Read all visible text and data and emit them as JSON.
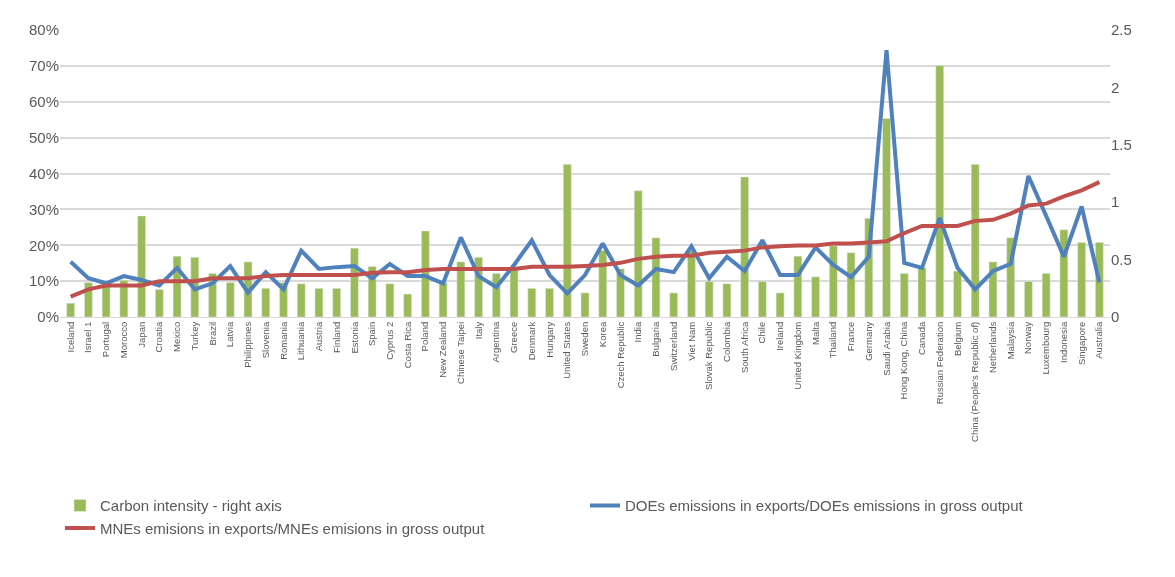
{
  "chart_data": {
    "type": "bar",
    "categories": [
      "Iceland",
      "Israel 1",
      "Portugal",
      "Morocco",
      "Japan",
      "Croatia",
      "Mexico",
      "Turkey",
      "Brazil",
      "Latvia",
      "Philippines",
      "Slovenia",
      "Romania",
      "Lithuania",
      "Austria",
      "Finland",
      "Estonia",
      "Spain",
      "Cyprus 2",
      "Costa Rica",
      "Poland",
      "New Zealand",
      "Chinese Taipei",
      "Italy",
      "Argentina",
      "Greece",
      "Denmark",
      "Hungary",
      "United States",
      "Sweden",
      "Korea",
      "Czech Republic",
      "India",
      "Bulgaria",
      "Switzerland",
      "Viet Nam",
      "Slovak Republic",
      "Colombia",
      "South Africa",
      "Chile",
      "Ireland",
      "United Kingdom",
      "Malta",
      "Thailand",
      "France",
      "Germany",
      "Saudi Arabia",
      "Hong Kong, China",
      "Canada",
      "Russian Federation",
      "Belgium",
      "China (People's Republic of)",
      "Netherlands",
      "Malaysia",
      "Norway",
      "Luxembourg",
      "Indonesia",
      "Singapore",
      "Australia"
    ],
    "series": [
      {
        "name": "Carbon intensity - right axis",
        "axis": "y2",
        "color": "#9bbb59",
        "values": [
          0.12,
          0.3,
          0.29,
          0.32,
          0.88,
          0.24,
          0.53,
          0.52,
          0.38,
          0.3,
          0.48,
          0.25,
          0.3,
          0.29,
          0.25,
          0.25,
          0.6,
          0.44,
          0.29,
          0.2,
          0.75,
          0.3,
          0.48,
          0.52,
          0.38,
          0.43,
          0.25,
          0.25,
          1.33,
          0.21,
          0.58,
          0.42,
          1.1,
          0.69,
          0.21,
          0.58,
          0.31,
          0.29,
          1.22,
          0.31,
          0.21,
          0.53,
          0.35,
          0.62,
          0.56,
          0.86,
          1.73,
          0.38,
          0.43,
          2.19,
          0.4,
          1.33,
          0.48,
          0.69,
          0.31,
          0.38,
          0.76,
          0.65,
          0.65
        ]
      },
      {
        "name": "DOEs emissions in exports/DOEs emissions in gross output",
        "type": "line",
        "color": "#4f81bd",
        "values": [
          15.4,
          10.8,
          9.4,
          11.4,
          10.3,
          8.8,
          13.7,
          7.7,
          9.4,
          14.2,
          6.8,
          12.5,
          7.7,
          18.5,
          13.4,
          13.9,
          14.2,
          10.8,
          14.8,
          11.4,
          11.4,
          9.4,
          22.2,
          11.4,
          8.3,
          14.5,
          21.4,
          11.7,
          6.6,
          11.7,
          20.5,
          11.7,
          8.8,
          13.4,
          12.5,
          19.7,
          10.8,
          16.8,
          12.8,
          21.4,
          11.7,
          11.7,
          19.4,
          14.5,
          11.1,
          16.8,
          74.4,
          15.1,
          13.7,
          27.6,
          13.7,
          7.7,
          12.8,
          14.8,
          39.3,
          28.2,
          16.8,
          30.8,
          9.7
        ]
      },
      {
        "name": "MNEs emisions in exports/MNEs emisions in gross output",
        "type": "line",
        "color": "#c0504d",
        "values": [
          5.7,
          7.7,
          8.8,
          8.8,
          8.8,
          10.0,
          10.0,
          10.0,
          10.8,
          10.8,
          10.8,
          11.4,
          11.7,
          11.7,
          11.7,
          11.7,
          11.7,
          12.3,
          12.5,
          12.5,
          13.1,
          13.4,
          13.4,
          13.4,
          13.4,
          13.4,
          14.0,
          14.0,
          14.0,
          14.2,
          14.5,
          15.1,
          16.2,
          16.8,
          17.1,
          17.1,
          17.9,
          18.2,
          18.5,
          19.4,
          19.7,
          19.9,
          19.9,
          20.5,
          20.5,
          20.8,
          21.1,
          23.4,
          25.4,
          25.4,
          25.4,
          26.8,
          27.1,
          28.8,
          31.1,
          31.6,
          33.6,
          35.3,
          37.6
        ]
      }
    ],
    "ylim": [
      0,
      80
    ],
    "yticks": [
      {
        "value": 0,
        "label": "0%"
      },
      {
        "value": 10,
        "label": "10%"
      },
      {
        "value": 20,
        "label": "20%"
      },
      {
        "value": 30,
        "label": "30%"
      },
      {
        "value": 40,
        "label": "40%"
      },
      {
        "value": 50,
        "label": "50%"
      },
      {
        "value": 60,
        "label": "60%"
      },
      {
        "value": 70,
        "label": "70%"
      },
      {
        "value": 80,
        "label": "80%"
      }
    ],
    "y2lim": [
      0,
      2.5
    ],
    "y2ticks": [
      0,
      0.5,
      1,
      1.5,
      2,
      2.5
    ],
    "grid": "y",
    "legend": "bottom",
    "line_style": "solid"
  }
}
